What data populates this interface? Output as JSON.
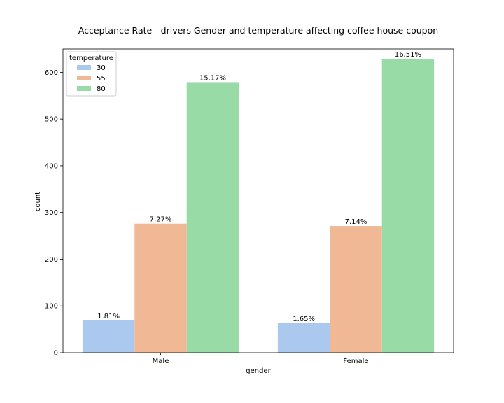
{
  "chart_data": {
    "type": "bar",
    "title": "Acceptance Rate - drivers Gender and temperature affecting coffee house coupon",
    "xlabel": "gender",
    "ylabel": "count",
    "categories": [
      "Male",
      "Female"
    ],
    "ylim": [
      0,
      650
    ],
    "yticks": [
      0,
      100,
      200,
      300,
      400,
      500,
      600
    ],
    "legend": {
      "title": "temperature",
      "placement": "top-left"
    },
    "series": [
      {
        "name": "30",
        "color": "#abc9ee",
        "values": [
          69,
          63
        ],
        "labels": [
          "1.81%",
          "1.65%"
        ]
      },
      {
        "name": "55",
        "color": "#f0b894",
        "values": [
          276,
          271
        ],
        "labels": [
          "7.27%",
          "7.14%"
        ]
      },
      {
        "name": "80",
        "color": "#98dba7",
        "values": [
          579,
          629
        ],
        "labels": [
          "15.17%",
          "16.51%"
        ]
      }
    ]
  }
}
